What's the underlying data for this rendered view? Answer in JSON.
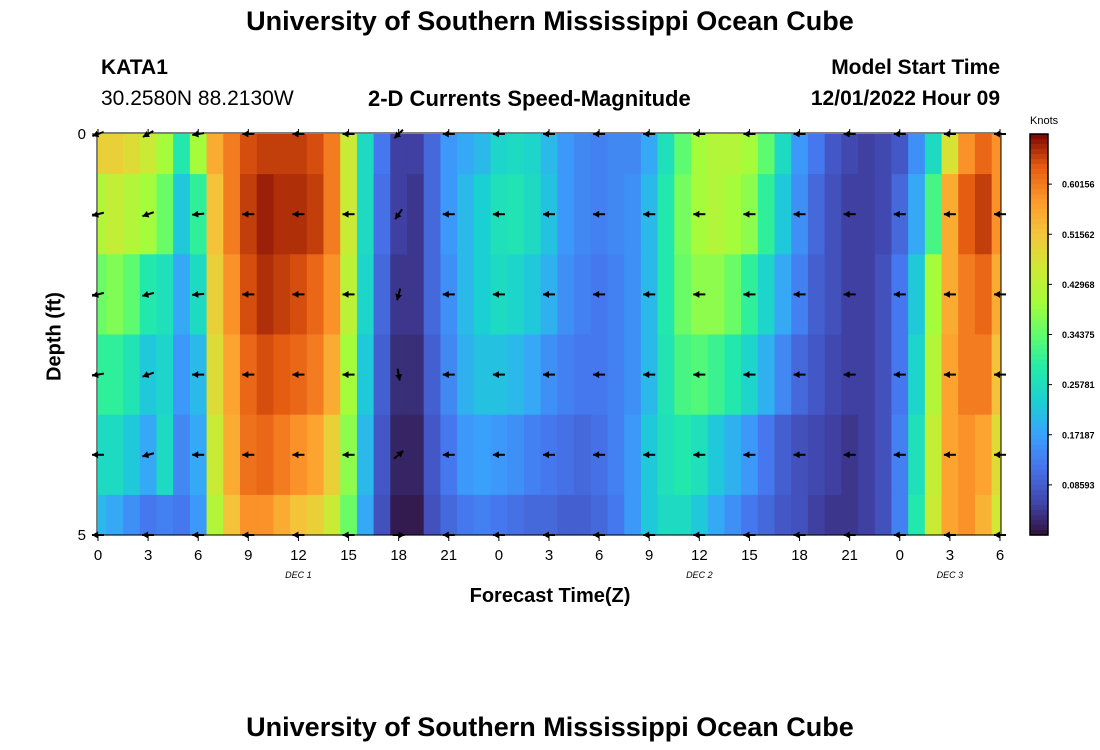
{
  "page": {
    "title_top": "University of Southern Mississippi Ocean Cube",
    "title_bottom": "University of Southern Mississippi Ocean Cube",
    "station": "KATA1",
    "coords": "30.2580N  88.2130W",
    "plot_title": "2-D Currents Speed-Magnitude",
    "model_label": "Model Start Time",
    "model_time": "12/01/2022 Hour 09"
  },
  "chart_data": {
    "type": "heatmap",
    "title": "2-D Currents Speed-Magnitude",
    "xlabel": "Forecast Time(Z)",
    "ylabel": "Depth (ft)",
    "x_tick_labels": [
      "0",
      "3",
      "6",
      "9",
      "12",
      "15",
      "18",
      "21",
      "0",
      "3",
      "6",
      "9",
      "12",
      "15",
      "18",
      "21",
      "0",
      "3",
      "6"
    ],
    "y_tick_labels": [
      "0",
      "5"
    ],
    "ylim": [
      0,
      5
    ],
    "date_labels": [
      {
        "label": "DEC 1",
        "hour": 12
      },
      {
        "label": "DEC 2",
        "hour": 36
      },
      {
        "label": "DEC 3",
        "hour": 51
      }
    ],
    "colorbar": {
      "unit": "Knots",
      "min": 0,
      "max": 0.6875,
      "tick_labels": [
        "0.60156",
        "0.51562",
        "0.42968",
        "0.34375",
        "0.25781",
        "0.17187",
        "0.08593"
      ],
      "tick_values": [
        0.60156,
        0.51562,
        0.42968,
        0.34375,
        0.25781,
        0.17187,
        0.08593
      ]
    },
    "hours": [
      0,
      1,
      2,
      3,
      4,
      5,
      6,
      7,
      8,
      9,
      10,
      11,
      12,
      13,
      14,
      15,
      16,
      17,
      18,
      19,
      20,
      21,
      22,
      23,
      24,
      25,
      26,
      27,
      28,
      29,
      30,
      31,
      32,
      33,
      34,
      35,
      36,
      37,
      38,
      39,
      40,
      41,
      42,
      43,
      44,
      45,
      46,
      47,
      48,
      49,
      50,
      51,
      52,
      53,
      54
    ],
    "depth_levels": [
      0,
      1,
      2,
      3,
      4,
      5
    ],
    "speeds": [
      [
        0.5,
        0.5,
        0.48,
        0.45,
        0.4,
        0.28,
        0.4,
        0.55,
        0.6,
        0.64,
        0.65,
        0.65,
        0.65,
        0.64,
        0.6,
        0.45,
        0.25,
        0.12,
        0.05,
        0.05,
        0.1,
        0.16,
        0.18,
        0.2,
        0.24,
        0.25,
        0.24,
        0.2,
        0.16,
        0.14,
        0.13,
        0.14,
        0.14,
        0.18,
        0.26,
        0.34,
        0.4,
        0.42,
        0.42,
        0.4,
        0.34,
        0.25,
        0.16,
        0.12,
        0.08,
        0.06,
        0.05,
        0.06,
        0.08,
        0.15,
        0.25,
        0.47,
        0.58,
        0.62,
        0.58
      ],
      [
        0.42,
        0.44,
        0.42,
        0.4,
        0.35,
        0.22,
        0.3,
        0.52,
        0.6,
        0.65,
        0.67,
        0.66,
        0.66,
        0.65,
        0.6,
        0.45,
        0.25,
        0.11,
        0.05,
        0.04,
        0.1,
        0.16,
        0.2,
        0.23,
        0.26,
        0.27,
        0.25,
        0.21,
        0.16,
        0.14,
        0.13,
        0.14,
        0.15,
        0.2,
        0.28,
        0.36,
        0.4,
        0.42,
        0.4,
        0.38,
        0.3,
        0.22,
        0.15,
        0.1,
        0.07,
        0.05,
        0.05,
        0.06,
        0.1,
        0.18,
        0.32,
        0.55,
        0.63,
        0.65,
        0.58
      ],
      [
        0.35,
        0.37,
        0.34,
        0.28,
        0.26,
        0.18,
        0.25,
        0.5,
        0.58,
        0.64,
        0.66,
        0.65,
        0.64,
        0.62,
        0.58,
        0.43,
        0.24,
        0.1,
        0.04,
        0.04,
        0.1,
        0.15,
        0.2,
        0.23,
        0.25,
        0.24,
        0.22,
        0.19,
        0.15,
        0.13,
        0.12,
        0.13,
        0.15,
        0.2,
        0.28,
        0.35,
        0.38,
        0.38,
        0.35,
        0.3,
        0.24,
        0.18,
        0.13,
        0.09,
        0.07,
        0.05,
        0.05,
        0.07,
        0.12,
        0.22,
        0.4,
        0.55,
        0.6,
        0.62,
        0.55
      ],
      [
        0.3,
        0.3,
        0.27,
        0.22,
        0.24,
        0.16,
        0.2,
        0.48,
        0.56,
        0.62,
        0.64,
        0.63,
        0.62,
        0.6,
        0.55,
        0.4,
        0.22,
        0.09,
        0.03,
        0.03,
        0.09,
        0.14,
        0.19,
        0.21,
        0.21,
        0.2,
        0.18,
        0.15,
        0.13,
        0.12,
        0.12,
        0.13,
        0.15,
        0.2,
        0.27,
        0.32,
        0.33,
        0.31,
        0.28,
        0.24,
        0.19,
        0.14,
        0.1,
        0.08,
        0.06,
        0.05,
        0.05,
        0.07,
        0.12,
        0.24,
        0.42,
        0.56,
        0.6,
        0.6,
        0.52
      ],
      [
        0.25,
        0.25,
        0.22,
        0.18,
        0.25,
        0.14,
        0.18,
        0.45,
        0.55,
        0.61,
        0.62,
        0.6,
        0.58,
        0.56,
        0.5,
        0.38,
        0.2,
        0.08,
        0.02,
        0.02,
        0.08,
        0.12,
        0.16,
        0.17,
        0.16,
        0.15,
        0.13,
        0.12,
        0.11,
        0.1,
        0.11,
        0.13,
        0.16,
        0.22,
        0.26,
        0.28,
        0.26,
        0.22,
        0.19,
        0.16,
        0.12,
        0.09,
        0.07,
        0.06,
        0.05,
        0.04,
        0.05,
        0.07,
        0.13,
        0.26,
        0.44,
        0.56,
        0.58,
        0.56,
        0.48
      ],
      [
        0.2,
        0.18,
        0.15,
        0.12,
        0.13,
        0.12,
        0.16,
        0.42,
        0.52,
        0.58,
        0.58,
        0.55,
        0.52,
        0.5,
        0.45,
        0.35,
        0.18,
        0.07,
        0.01,
        0.01,
        0.07,
        0.1,
        0.12,
        0.13,
        0.12,
        0.11,
        0.1,
        0.1,
        0.09,
        0.09,
        0.1,
        0.12,
        0.16,
        0.22,
        0.25,
        0.25,
        0.22,
        0.18,
        0.15,
        0.12,
        0.1,
        0.08,
        0.07,
        0.05,
        0.04,
        0.04,
        0.05,
        0.07,
        0.13,
        0.28,
        0.45,
        0.56,
        0.58,
        0.54,
        0.46
      ]
    ],
    "vector_hours": [
      0,
      3,
      6,
      9,
      12,
      15,
      18,
      21,
      24,
      27,
      30,
      33,
      36,
      39,
      42,
      45,
      48,
      51,
      54
    ],
    "vector_angles_deg": [
      [
        200,
        210,
        190,
        180,
        180,
        180,
        225,
        180,
        180,
        180,
        180,
        180,
        180,
        180,
        180,
        180,
        180,
        180,
        180
      ],
      [
        195,
        200,
        185,
        180,
        180,
        180,
        235,
        180,
        180,
        180,
        180,
        180,
        180,
        180,
        180,
        180,
        180,
        180,
        180
      ],
      [
        195,
        195,
        185,
        180,
        180,
        180,
        255,
        180,
        180,
        180,
        180,
        180,
        180,
        180,
        180,
        180,
        180,
        180,
        180
      ],
      [
        190,
        200,
        180,
        180,
        180,
        180,
        280,
        180,
        180,
        180,
        180,
        180,
        180,
        180,
        180,
        180,
        180,
        180,
        180
      ],
      [
        180,
        195,
        180,
        180,
        180,
        180,
        40,
        180,
        180,
        180,
        180,
        180,
        180,
        180,
        180,
        180,
        180,
        180,
        180
      ],
      [
        180,
        180,
        180,
        180,
        180,
        180,
        0,
        180,
        180,
        180,
        180,
        180,
        180,
        180,
        180,
        180,
        180,
        180,
        180
      ]
    ]
  }
}
